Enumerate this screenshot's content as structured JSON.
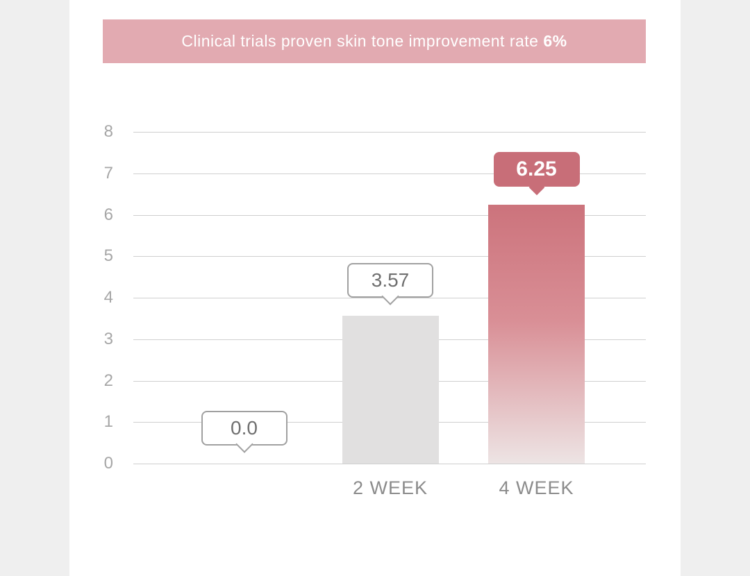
{
  "banner": {
    "text_regular": "Clinical trials proven skin tone improvement rate ",
    "text_bold": "6%",
    "bg_color": "#e2aab1",
    "text_color": "#ffffff"
  },
  "chart_data": {
    "type": "bar",
    "title": "Clinical trials proven skin tone improvement rate 6%",
    "categories": [
      "",
      "2 WEEK",
      "4 WEEK"
    ],
    "values": [
      0.0,
      3.57,
      6.25
    ],
    "ylim": [
      0,
      8
    ],
    "yticks": [
      0,
      1,
      2,
      3,
      4,
      5,
      6,
      7,
      8
    ],
    "xlabel": "",
    "ylabel": "",
    "grid": "horizontal",
    "legend": "none",
    "bars": [
      {
        "category": "",
        "value": 0.0,
        "label": "0.0",
        "callout_style": "outline",
        "bar_style": "none"
      },
      {
        "category": "2 WEEK",
        "value": 3.57,
        "label": "3.57",
        "callout_style": "outline",
        "bar_style": "gray"
      },
      {
        "category": "4 WEEK",
        "value": 6.25,
        "label": "6.25",
        "callout_style": "filled",
        "bar_style": "pink-gradient"
      }
    ],
    "colors": {
      "bar_gray": "#e1e0e0",
      "bar_pink_top": "#cc737c",
      "bar_pink_bottom": "#ede4e4",
      "callout_filled_bg": "#c86e78",
      "callout_outline_border": "#a0a0a0",
      "callout_outline_text": "#6f6f6f",
      "gridline": "#cfcfcf",
      "ytick_text": "#a6a6a6",
      "xlabel_text": "#8b8b8b",
      "page_margin_bg": "#efefef",
      "page_bg": "#ffffff"
    }
  }
}
